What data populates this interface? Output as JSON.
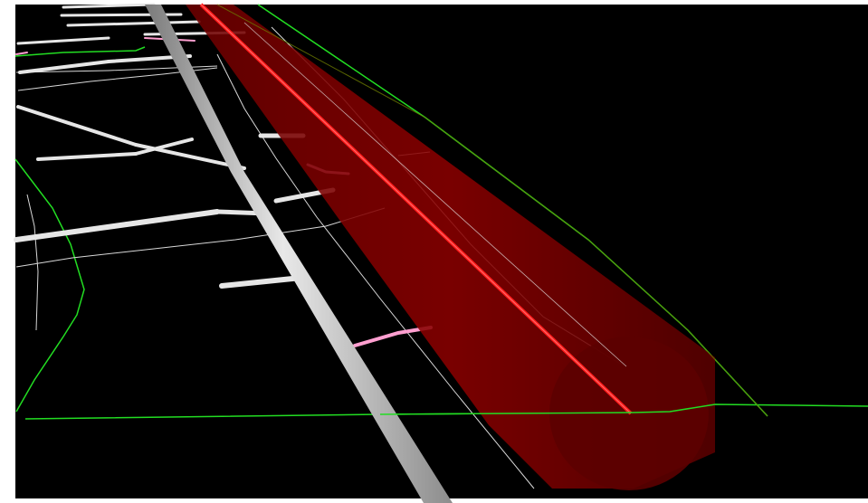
{
  "viewer": {
    "background": "#000000",
    "frame_color": "#ffffff"
  },
  "colors": {
    "highlight_pipe": "#8b0000",
    "highlight_axis": "#ff1a1a",
    "main_pipe": "#c8c8c8",
    "service_pipe": "#e6e6e6",
    "pink_pipe": "#ff9fd0",
    "boundary": "#22dd22",
    "thin_line": "#d8d8d8"
  }
}
